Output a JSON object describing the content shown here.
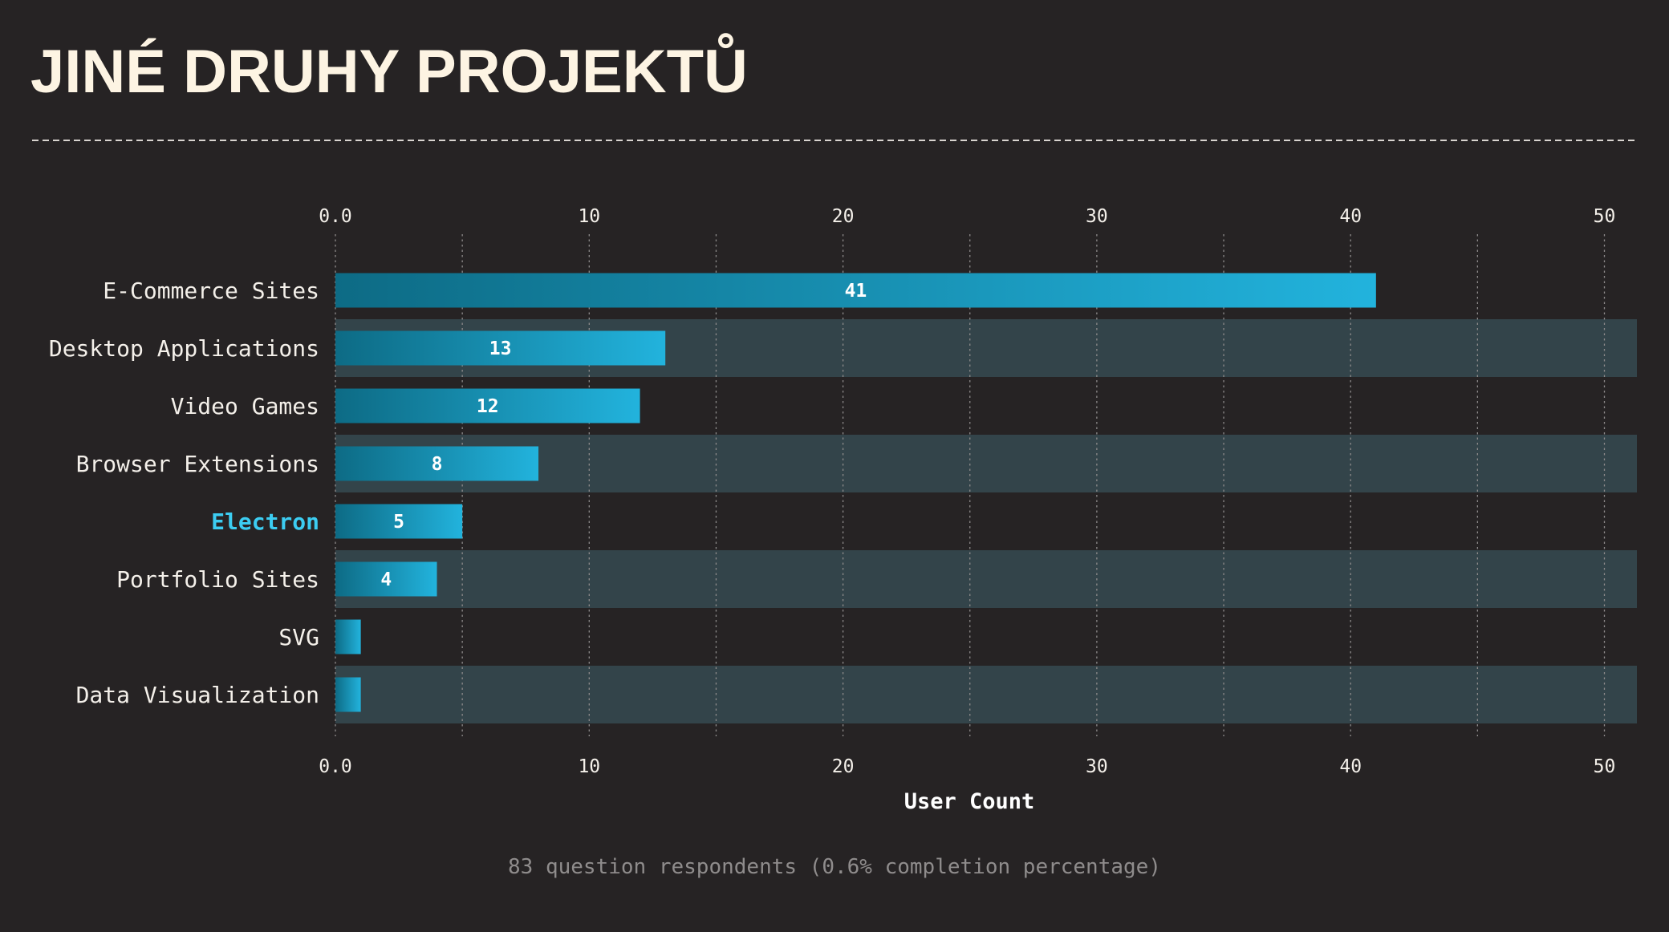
{
  "page": {
    "title": "JINÉ DRUHY PROJEKTŮ",
    "footnote": "83 question respondents (0.6% completion percentage)"
  },
  "chart_data": {
    "type": "bar",
    "orientation": "horizontal",
    "title": "JINÉ DRUHY PROJEKTŮ",
    "xlabel": "User Count",
    "ylabel": "",
    "categories": [
      "E-Commerce Sites",
      "Desktop Applications",
      "Video Games",
      "Browser Extensions",
      "Electron",
      "Portfolio Sites",
      "SVG",
      "Data Visualization"
    ],
    "values": [
      41,
      13,
      12,
      8,
      5,
      4,
      1,
      1
    ],
    "value_labels": [
      "41",
      "13",
      "12",
      "8",
      "5",
      "4",
      "",
      ""
    ],
    "highlighted_category": "Electron",
    "xlim": [
      0,
      51.3
    ],
    "x_ticks": [
      0,
      10,
      20,
      30,
      40,
      50
    ],
    "x_tick_labels": [
      "0.0",
      "10",
      "20",
      "30",
      "40",
      "50"
    ],
    "minor_grid_ticks": [
      5,
      15,
      25,
      35,
      45
    ],
    "grid": true,
    "tick_labels_top_and_bottom": true,
    "colors": {
      "background": "#262324",
      "title": "#fdf4e3",
      "band": "#33444a",
      "bar_start": "#0d6b85",
      "bar_end": "#22b3dd",
      "highlight_label": "#3ccdf2",
      "grid": "#8e8b8b",
      "divider": "#d8d4cf",
      "footnote": "#8f8c8c"
    }
  }
}
